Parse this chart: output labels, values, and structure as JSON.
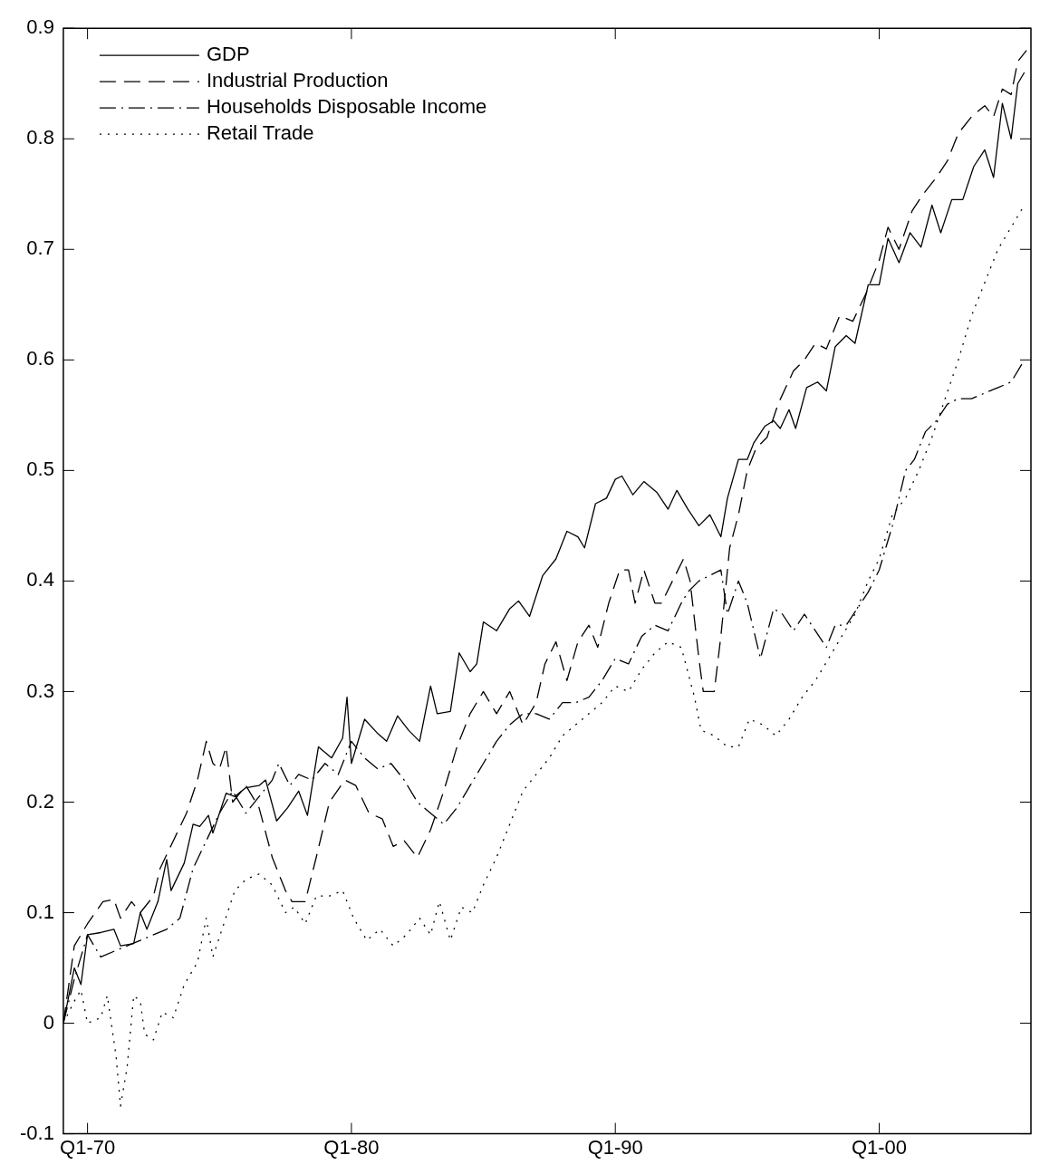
{
  "chart_data": {
    "type": "line",
    "legend": "top left",
    "grid": false,
    "marker": "none",
    "xlim": [
      "1969-02",
      "2005-10"
    ],
    "xticks": [
      {
        "value": "1970-01",
        "label": "Q1-70"
      },
      {
        "value": "1980-01",
        "label": "Q1-80"
      },
      {
        "value": "1990-01",
        "label": "Q1-90"
      },
      {
        "value": "2000-01",
        "label": "Q1-00"
      }
    ],
    "ylim": [
      -0.1,
      0.9
    ],
    "yticks": [
      -0.1,
      0,
      0.1,
      0.2,
      0.3,
      0.4,
      0.5,
      0.6,
      0.7,
      0.8,
      0.9
    ],
    "series": [
      {
        "name": "GDP",
        "color": "#000000",
        "line_style": "solid",
        "x": [
          "1969-02",
          "1969-07",
          "1969-10",
          "1970-01",
          "1970-07",
          "1971-01",
          "1971-04",
          "1971-10",
          "1972-01",
          "1972-04",
          "1972-09",
          "1973-01",
          "1973-03",
          "1973-09",
          "1974-01",
          "1974-04",
          "1974-08",
          "1974-10",
          "1975-04",
          "1975-08",
          "1976-01",
          "1976-07",
          "1976-10",
          "1977-03",
          "1977-08",
          "1978-01",
          "1978-05",
          "1978-10",
          "1979-04",
          "1979-09",
          "1979-11",
          "1980-01",
          "1980-07",
          "1981-01",
          "1981-05",
          "1981-10",
          "1982-03",
          "1982-08",
          "1983-01",
          "1983-04",
          "1983-10",
          "1984-02",
          "1984-07",
          "1984-10",
          "1985-01",
          "1985-07",
          "1986-01",
          "1986-05",
          "1986-10",
          "1987-04",
          "1987-10",
          "1988-03",
          "1988-08",
          "1988-11",
          "1989-04",
          "1989-09",
          "1990-01",
          "1990-04",
          "1990-09",
          "1991-02",
          "1991-08",
          "1992-01",
          "1992-05",
          "1992-10",
          "1993-03",
          "1993-08",
          "1994-01",
          "1994-04",
          "1994-09",
          "1995-01",
          "1995-04",
          "1995-09",
          "1996-01",
          "1996-04",
          "1996-08",
          "1996-11",
          "1997-04",
          "1997-09",
          "1998-01",
          "1998-05",
          "1998-10",
          "1999-02",
          "1999-08",
          "2000-01",
          "2000-05",
          "2000-10",
          "2001-03",
          "2001-08",
          "2002-01",
          "2002-05",
          "2002-10",
          "2003-03",
          "2003-08",
          "2004-01",
          "2004-05",
          "2004-09",
          "2005-01",
          "2005-04",
          "2005-07"
        ],
        "values": [
          0,
          0.05,
          0.035,
          0.08,
          0.082,
          0.085,
          0.07,
          0.072,
          0.1,
          0.085,
          0.11,
          0.148,
          0.12,
          0.145,
          0.18,
          0.178,
          0.188,
          0.172,
          0.208,
          0.205,
          0.213,
          0.215,
          0.22,
          0.183,
          0.195,
          0.21,
          0.188,
          0.25,
          0.24,
          0.258,
          0.295,
          0.235,
          0.275,
          0.262,
          0.255,
          0.278,
          0.265,
          0.255,
          0.305,
          0.28,
          0.282,
          0.335,
          0.318,
          0.325,
          0.363,
          0.355,
          0.375,
          0.382,
          0.368,
          0.405,
          0.42,
          0.445,
          0.44,
          0.43,
          0.47,
          0.475,
          0.492,
          0.495,
          0.478,
          0.49,
          0.48,
          0.465,
          0.482,
          0.465,
          0.45,
          0.46,
          0.44,
          0.475,
          0.51,
          0.51,
          0.525,
          0.54,
          0.545,
          0.538,
          0.555,
          0.538,
          0.575,
          0.58,
          0.572,
          0.612,
          0.622,
          0.615,
          0.668,
          0.668,
          0.71,
          0.688,
          0.715,
          0.702,
          0.74,
          0.715,
          0.745,
          0.745,
          0.775,
          0.79,
          0.765,
          0.832,
          0.8,
          0.85,
          0.86
        ]
      },
      {
        "name": "Industrial Production",
        "color": "#000000",
        "line_style": "dashed",
        "x": [
          "1969-02",
          "1969-07",
          "1970-01",
          "1970-08",
          "1971-01",
          "1971-04",
          "1971-09",
          "1972-01",
          "1972-07",
          "1972-10",
          "1973-04",
          "1973-10",
          "1974-03",
          "1974-07",
          "1974-10",
          "1975-01",
          "1975-04",
          "1975-07",
          "1976-01",
          "1976-07",
          "1977-01",
          "1977-07",
          "1977-10",
          "1978-04",
          "1978-09",
          "1979-03",
          "1979-10",
          "1980-03",
          "1980-09",
          "1981-03",
          "1981-08",
          "1982-01",
          "1982-07",
          "1983-01",
          "1983-07",
          "1984-01",
          "1984-07",
          "1985-01",
          "1985-07",
          "1986-01",
          "1986-07",
          "1987-01",
          "1987-05",
          "1987-10",
          "1988-03",
          "1988-08",
          "1989-01",
          "1989-05",
          "1989-10",
          "1990-03",
          "1990-07",
          "1990-10",
          "1991-02",
          "1991-07",
          "1991-10",
          "1992-03",
          "1992-08",
          "1992-11",
          "1993-03",
          "1993-05",
          "1993-10",
          "1994-01",
          "1994-05",
          "1994-09",
          "1995-01",
          "1995-05",
          "1995-10",
          "1996-03",
          "1996-10",
          "1997-03",
          "1997-08",
          "1998-01",
          "1998-07",
          "1999-01",
          "1999-07",
          "2000-01",
          "2000-05",
          "2000-10",
          "2001-04",
          "2001-09",
          "2002-03",
          "2002-08",
          "2003-01",
          "2003-07",
          "2004-01",
          "2004-05",
          "2004-09",
          "2005-01",
          "2005-04",
          "2005-08"
        ],
        "values": [
          0,
          0.07,
          0.09,
          0.11,
          0.112,
          0.095,
          0.11,
          0.1,
          0.115,
          0.14,
          0.165,
          0.19,
          0.22,
          0.255,
          0.235,
          0.23,
          0.25,
          0.2,
          0.215,
          0.195,
          0.15,
          0.12,
          0.11,
          0.11,
          0.15,
          0.2,
          0.22,
          0.215,
          0.19,
          0.185,
          0.16,
          0.165,
          0.15,
          0.175,
          0.21,
          0.25,
          0.28,
          0.3,
          0.28,
          0.3,
          0.27,
          0.29,
          0.325,
          0.345,
          0.31,
          0.345,
          0.36,
          0.34,
          0.38,
          0.41,
          0.41,
          0.38,
          0.41,
          0.38,
          0.38,
          0.4,
          0.42,
          0.4,
          0.33,
          0.3,
          0.3,
          0.35,
          0.43,
          0.46,
          0.5,
          0.52,
          0.53,
          0.56,
          0.59,
          0.6,
          0.615,
          0.61,
          0.64,
          0.635,
          0.66,
          0.69,
          0.72,
          0.7,
          0.735,
          0.75,
          0.765,
          0.78,
          0.805,
          0.82,
          0.83,
          0.82,
          0.845,
          0.84,
          0.87,
          0.88
        ]
      },
      {
        "name": "Households Disposable Income",
        "color": "#000000",
        "line_style": "dashdot",
        "x": [
          "1969-02",
          "1969-07",
          "1970-01",
          "1970-07",
          "1971-01",
          "1971-07",
          "1972-01",
          "1972-07",
          "1973-01",
          "1973-07",
          "1974-01",
          "1974-07",
          "1975-01",
          "1975-07",
          "1976-01",
          "1976-07",
          "1977-01",
          "1977-04",
          "1977-09",
          "1978-01",
          "1978-07",
          "1979-01",
          "1979-07",
          "1980-01",
          "1980-07",
          "1981-01",
          "1981-07",
          "1982-01",
          "1982-07",
          "1983-01",
          "1983-07",
          "1984-01",
          "1984-07",
          "1985-01",
          "1985-07",
          "1986-01",
          "1986-07",
          "1987-01",
          "1987-07",
          "1988-01",
          "1988-07",
          "1989-01",
          "1989-07",
          "1990-01",
          "1990-07",
          "1991-01",
          "1991-07",
          "1992-01",
          "1992-07",
          "1992-10",
          "1993-03",
          "1993-08",
          "1994-01",
          "1994-04",
          "1994-09",
          "1995-01",
          "1995-07",
          "1996-01",
          "1996-05",
          "1996-10",
          "1997-03",
          "1997-08",
          "1998-01",
          "1998-05",
          "1998-10",
          "1999-03",
          "1999-08",
          "2000-01",
          "2000-07",
          "2001-01",
          "2001-05",
          "2001-10",
          "2002-03",
          "2002-08",
          "2003-01",
          "2003-07",
          "2004-01",
          "2004-07",
          "2005-01",
          "2005-07"
        ],
        "values": [
          0,
          0.04,
          0.08,
          0.06,
          0.065,
          0.07,
          0.075,
          0.08,
          0.085,
          0.095,
          0.14,
          0.165,
          0.19,
          0.21,
          0.19,
          0.205,
          0.22,
          0.235,
          0.215,
          0.225,
          0.22,
          0.235,
          0.225,
          0.255,
          0.24,
          0.23,
          0.235,
          0.22,
          0.2,
          0.19,
          0.18,
          0.195,
          0.215,
          0.235,
          0.255,
          0.27,
          0.28,
          0.28,
          0.275,
          0.29,
          0.29,
          0.295,
          0.31,
          0.33,
          0.325,
          0.35,
          0.36,
          0.355,
          0.38,
          0.39,
          0.4,
          0.405,
          0.41,
          0.37,
          0.4,
          0.38,
          0.33,
          0.375,
          0.37,
          0.355,
          0.37,
          0.355,
          0.34,
          0.36,
          0.36,
          0.375,
          0.39,
          0.41,
          0.45,
          0.5,
          0.51,
          0.535,
          0.545,
          0.56,
          0.565,
          0.565,
          0.57,
          0.575,
          0.58,
          0.6
        ]
      },
      {
        "name": "Retail Trade",
        "color": "#000000",
        "line_style": "dotted",
        "x": [
          "1969-02",
          "1969-07",
          "1969-10",
          "1970-01",
          "1970-07",
          "1970-10",
          "1971-02",
          "1971-04",
          "1971-07",
          "1971-10",
          "1972-01",
          "1972-03",
          "1972-07",
          "1972-11",
          "1973-04",
          "1973-09",
          "1974-03",
          "1974-07",
          "1974-10",
          "1975-03",
          "1975-08",
          "1976-01",
          "1976-07",
          "1977-01",
          "1977-07",
          "1977-11",
          "1978-04",
          "1978-09",
          "1979-03",
          "1979-09",
          "1980-02",
          "1980-08",
          "1981-02",
          "1981-08",
          "1982-02",
          "1982-08",
          "1983-01",
          "1983-05",
          "1983-10",
          "1984-03",
          "1984-08",
          "1985-01",
          "1985-07",
          "1986-01",
          "1986-07",
          "1987-01",
          "1987-07",
          "1988-01",
          "1988-07",
          "1989-01",
          "1989-07",
          "1990-01",
          "1990-07",
          "1991-01",
          "1991-07",
          "1992-01",
          "1992-07",
          "1993-01",
          "1993-04",
          "1993-10",
          "1994-04",
          "1994-09",
          "1995-02",
          "1995-08",
          "1996-02",
          "1996-08",
          "1997-02",
          "1997-08",
          "1998-02",
          "1998-08",
          "1999-02",
          "1999-08",
          "2000-01",
          "2000-07",
          "2001-01",
          "2001-07",
          "2002-01",
          "2002-07",
          "2003-01",
          "2003-07",
          "2004-01",
          "2004-07",
          "2005-01",
          "2005-07"
        ],
        "values": [
          0,
          0.02,
          0.03,
          0,
          0.005,
          0.025,
          -0.03,
          -0.075,
          -0.04,
          0.025,
          0.02,
          -0.01,
          -0.015,
          0.01,
          0.005,
          0.035,
          0.055,
          0.095,
          0.06,
          0.09,
          0.12,
          0.13,
          0.135,
          0.125,
          0.1,
          0.105,
          0.09,
          0.115,
          0.115,
          0.12,
          0.095,
          0.075,
          0.085,
          0.07,
          0.08,
          0.095,
          0.08,
          0.11,
          0.075,
          0.105,
          0.1,
          0.125,
          0.15,
          0.18,
          0.21,
          0.225,
          0.24,
          0.26,
          0.27,
          0.28,
          0.29,
          0.305,
          0.3,
          0.32,
          0.335,
          0.345,
          0.34,
          0.295,
          0.265,
          0.26,
          0.25,
          0.25,
          0.275,
          0.27,
          0.26,
          0.275,
          0.295,
          0.31,
          0.33,
          0.35,
          0.37,
          0.4,
          0.42,
          0.46,
          0.475,
          0.5,
          0.53,
          0.565,
          0.6,
          0.64,
          0.67,
          0.7,
          0.72,
          0.74
        ]
      }
    ]
  }
}
